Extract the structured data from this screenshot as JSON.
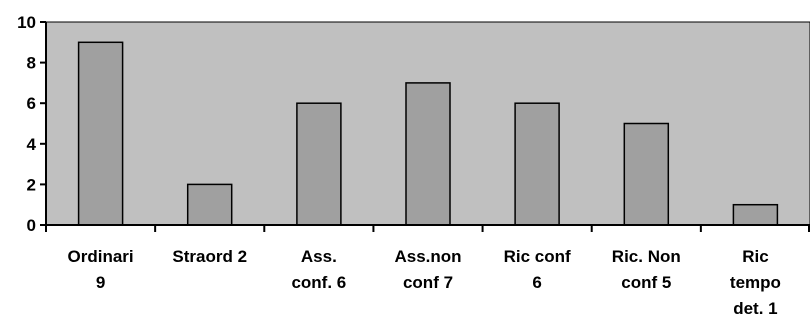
{
  "chart_data": {
    "type": "bar",
    "categories": [
      [
        "Ordinari",
        "9"
      ],
      [
        "Straord 2"
      ],
      [
        "Ass.",
        "conf. 6"
      ],
      [
        "Ass.non",
        "conf 7"
      ],
      [
        "Ric conf",
        "6"
      ],
      [
        "Ric. Non",
        "conf 5"
      ],
      [
        "Ric",
        "tempo",
        "det. 1"
      ]
    ],
    "values": [
      9,
      2,
      6,
      7,
      6,
      5,
      1
    ],
    "ylim": [
      0,
      10
    ],
    "yticks": [
      "0",
      "2",
      "4",
      "6",
      "8",
      "10"
    ],
    "grid": false,
    "plot_background": "#c0c0c0",
    "bar_color": "#a0a0a0",
    "bar_outline": "#000000"
  }
}
